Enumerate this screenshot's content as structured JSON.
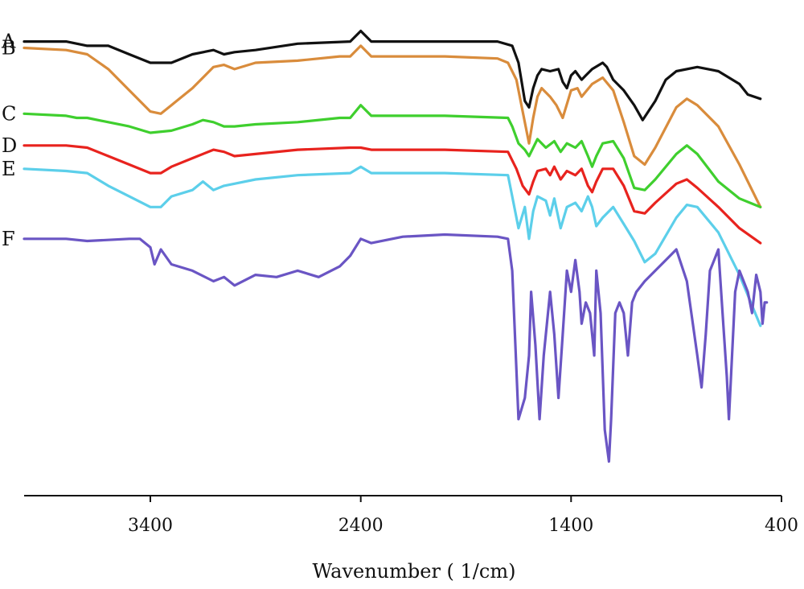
{
  "chart_data": {
    "type": "line",
    "title": "",
    "xlabel": "Wavenumber ( 1/cm)",
    "ylabel": "",
    "x_reversed": true,
    "xlim": [
      4000,
      400
    ],
    "xticks": [
      3400,
      2400,
      1400,
      400
    ],
    "y_axis_shown": false,
    "grid": false,
    "series": [
      {
        "name": "A",
        "color": "#111111",
        "offset": 0,
        "points": [
          [
            4000,
            98
          ],
          [
            3800,
            98
          ],
          [
            3700,
            96
          ],
          [
            3600,
            96
          ],
          [
            3500,
            92
          ],
          [
            3400,
            88
          ],
          [
            3300,
            88
          ],
          [
            3200,
            92
          ],
          [
            3100,
            94
          ],
          [
            3050,
            92
          ],
          [
            3000,
            93
          ],
          [
            2900,
            94
          ],
          [
            2700,
            97
          ],
          [
            2450,
            98
          ],
          [
            2400,
            103
          ],
          [
            2350,
            98
          ],
          [
            2000,
            98
          ],
          [
            1750,
            98
          ],
          [
            1680,
            96
          ],
          [
            1650,
            88
          ],
          [
            1620,
            70
          ],
          [
            1600,
            67
          ],
          [
            1580,
            76
          ],
          [
            1560,
            82
          ],
          [
            1540,
            85
          ],
          [
            1500,
            84
          ],
          [
            1460,
            85
          ],
          [
            1440,
            79
          ],
          [
            1420,
            76
          ],
          [
            1400,
            82
          ],
          [
            1380,
            84
          ],
          [
            1350,
            80
          ],
          [
            1330,
            82
          ],
          [
            1300,
            85
          ],
          [
            1250,
            88
          ],
          [
            1230,
            86
          ],
          [
            1200,
            80
          ],
          [
            1150,
            75
          ],
          [
            1100,
            68
          ],
          [
            1060,
            61
          ],
          [
            1000,
            70
          ],
          [
            950,
            80
          ],
          [
            900,
            84
          ],
          [
            800,
            86
          ],
          [
            700,
            84
          ],
          [
            600,
            78
          ],
          [
            560,
            73
          ],
          [
            500,
            71
          ]
        ]
      },
      {
        "name": "B",
        "color": "#D98C3C",
        "offset": 0,
        "points": [
          [
            4000,
            95
          ],
          [
            3800,
            94
          ],
          [
            3700,
            92
          ],
          [
            3600,
            85
          ],
          [
            3500,
            75
          ],
          [
            3400,
            65
          ],
          [
            3350,
            64
          ],
          [
            3300,
            68
          ],
          [
            3200,
            76
          ],
          [
            3100,
            86
          ],
          [
            3050,
            87
          ],
          [
            3000,
            85
          ],
          [
            2900,
            88
          ],
          [
            2700,
            89
          ],
          [
            2500,
            91
          ],
          [
            2450,
            91
          ],
          [
            2400,
            96
          ],
          [
            2350,
            91
          ],
          [
            2000,
            91
          ],
          [
            1750,
            90
          ],
          [
            1700,
            88
          ],
          [
            1660,
            80
          ],
          [
            1630,
            65
          ],
          [
            1600,
            50
          ],
          [
            1580,
            62
          ],
          [
            1560,
            72
          ],
          [
            1540,
            76
          ],
          [
            1500,
            72
          ],
          [
            1470,
            68
          ],
          [
            1440,
            62
          ],
          [
            1400,
            75
          ],
          [
            1370,
            76
          ],
          [
            1350,
            72
          ],
          [
            1300,
            78
          ],
          [
            1250,
            81
          ],
          [
            1200,
            75
          ],
          [
            1150,
            60
          ],
          [
            1100,
            44
          ],
          [
            1050,
            40
          ],
          [
            1000,
            48
          ],
          [
            900,
            67
          ],
          [
            850,
            71
          ],
          [
            800,
            68
          ],
          [
            700,
            58
          ],
          [
            600,
            40
          ],
          [
            500,
            20
          ]
        ]
      },
      {
        "name": "C",
        "color": "#3FCF2E",
        "offset": 0,
        "points": [
          [
            4000,
            64
          ],
          [
            3800,
            63
          ],
          [
            3750,
            62
          ],
          [
            3700,
            62
          ],
          [
            3500,
            58
          ],
          [
            3400,
            55
          ],
          [
            3300,
            56
          ],
          [
            3200,
            59
          ],
          [
            3150,
            61
          ],
          [
            3100,
            60
          ],
          [
            3050,
            58
          ],
          [
            3000,
            58
          ],
          [
            2900,
            59
          ],
          [
            2700,
            60
          ],
          [
            2500,
            62
          ],
          [
            2450,
            62
          ],
          [
            2400,
            68
          ],
          [
            2350,
            63
          ],
          [
            2000,
            63
          ],
          [
            1700,
            62
          ],
          [
            1680,
            58
          ],
          [
            1650,
            50
          ],
          [
            1620,
            47
          ],
          [
            1600,
            44
          ],
          [
            1560,
            52
          ],
          [
            1520,
            48
          ],
          [
            1480,
            51
          ],
          [
            1450,
            46
          ],
          [
            1420,
            50
          ],
          [
            1380,
            48
          ],
          [
            1350,
            51
          ],
          [
            1320,
            44
          ],
          [
            1300,
            39
          ],
          [
            1280,
            44
          ],
          [
            1250,
            50
          ],
          [
            1200,
            51
          ],
          [
            1150,
            43
          ],
          [
            1100,
            29
          ],
          [
            1050,
            28
          ],
          [
            1000,
            33
          ],
          [
            900,
            45
          ],
          [
            850,
            49
          ],
          [
            800,
            45
          ],
          [
            700,
            32
          ],
          [
            600,
            24
          ],
          [
            500,
            20
          ]
        ]
      },
      {
        "name": "D",
        "color": "#E8231E",
        "offset": 0,
        "points": [
          [
            4000,
            49
          ],
          [
            3800,
            49
          ],
          [
            3700,
            48
          ],
          [
            3600,
            44
          ],
          [
            3500,
            40
          ],
          [
            3400,
            36
          ],
          [
            3350,
            36
          ],
          [
            3300,
            39
          ],
          [
            3200,
            43
          ],
          [
            3100,
            47
          ],
          [
            3050,
            46
          ],
          [
            3000,
            44
          ],
          [
            2900,
            45
          ],
          [
            2700,
            47
          ],
          [
            2450,
            48
          ],
          [
            2400,
            48
          ],
          [
            2350,
            47
          ],
          [
            2000,
            47
          ],
          [
            1700,
            46
          ],
          [
            1660,
            38
          ],
          [
            1630,
            30
          ],
          [
            1600,
            26
          ],
          [
            1580,
            32
          ],
          [
            1560,
            37
          ],
          [
            1520,
            38
          ],
          [
            1500,
            35
          ],
          [
            1480,
            39
          ],
          [
            1450,
            33
          ],
          [
            1420,
            37
          ],
          [
            1380,
            35
          ],
          [
            1350,
            38
          ],
          [
            1320,
            30
          ],
          [
            1300,
            27
          ],
          [
            1280,
            32
          ],
          [
            1250,
            38
          ],
          [
            1200,
            38
          ],
          [
            1150,
            30
          ],
          [
            1100,
            18
          ],
          [
            1050,
            17
          ],
          [
            1000,
            22
          ],
          [
            900,
            31
          ],
          [
            850,
            33
          ],
          [
            800,
            29
          ],
          [
            700,
            20
          ],
          [
            600,
            10
          ],
          [
            500,
            3
          ]
        ]
      },
      {
        "name": "E",
        "color": "#5CCFEA",
        "offset": 0,
        "points": [
          [
            4000,
            38
          ],
          [
            3800,
            37
          ],
          [
            3700,
            36
          ],
          [
            3600,
            30
          ],
          [
            3500,
            25
          ],
          [
            3400,
            20
          ],
          [
            3350,
            20
          ],
          [
            3300,
            25
          ],
          [
            3200,
            28
          ],
          [
            3150,
            32
          ],
          [
            3100,
            28
          ],
          [
            3050,
            30
          ],
          [
            3000,
            31
          ],
          [
            2900,
            33
          ],
          [
            2700,
            35
          ],
          [
            2450,
            36
          ],
          [
            2400,
            39
          ],
          [
            2350,
            36
          ],
          [
            2000,
            36
          ],
          [
            1700,
            35
          ],
          [
            1680,
            25
          ],
          [
            1650,
            10
          ],
          [
            1620,
            20
          ],
          [
            1600,
            5
          ],
          [
            1580,
            18
          ],
          [
            1560,
            25
          ],
          [
            1520,
            23
          ],
          [
            1500,
            16
          ],
          [
            1480,
            24
          ],
          [
            1450,
            10
          ],
          [
            1420,
            20
          ],
          [
            1380,
            22
          ],
          [
            1350,
            18
          ],
          [
            1320,
            25
          ],
          [
            1300,
            20
          ],
          [
            1280,
            11
          ],
          [
            1250,
            15
          ],
          [
            1200,
            20
          ],
          [
            1150,
            12
          ],
          [
            1100,
            4
          ],
          [
            1050,
            -6
          ],
          [
            1000,
            -2
          ],
          [
            900,
            15
          ],
          [
            850,
            21
          ],
          [
            800,
            20
          ],
          [
            700,
            8
          ],
          [
            600,
            -12
          ],
          [
            500,
            -36
          ]
        ]
      },
      {
        "name": "F",
        "color": "#6A55C4",
        "offset": 0,
        "points": [
          [
            4000,
            5
          ],
          [
            3800,
            5
          ],
          [
            3700,
            4
          ],
          [
            3500,
            5
          ],
          [
            3450,
            5
          ],
          [
            3400,
            1
          ],
          [
            3380,
            -7
          ],
          [
            3350,
            0
          ],
          [
            3300,
            -7
          ],
          [
            3200,
            -10
          ],
          [
            3100,
            -15
          ],
          [
            3050,
            -13
          ],
          [
            3000,
            -17
          ],
          [
            2900,
            -12
          ],
          [
            2800,
            -13
          ],
          [
            2700,
            -10
          ],
          [
            2600,
            -13
          ],
          [
            2500,
            -8
          ],
          [
            2450,
            -3
          ],
          [
            2400,
            5
          ],
          [
            2350,
            3
          ],
          [
            2200,
            6
          ],
          [
            2000,
            7
          ],
          [
            1750,
            6
          ],
          [
            1700,
            5
          ],
          [
            1680,
            -10
          ],
          [
            1650,
            -80
          ],
          [
            1620,
            -70
          ],
          [
            1600,
            -50
          ],
          [
            1590,
            -20
          ],
          [
            1570,
            -45
          ],
          [
            1550,
            -80
          ],
          [
            1530,
            -50
          ],
          [
            1500,
            -20
          ],
          [
            1480,
            -40
          ],
          [
            1460,
            -70
          ],
          [
            1440,
            -40
          ],
          [
            1420,
            -10
          ],
          [
            1400,
            -20
          ],
          [
            1380,
            -5
          ],
          [
            1360,
            -20
          ],
          [
            1350,
            -35
          ],
          [
            1330,
            -25
          ],
          [
            1310,
            -30
          ],
          [
            1290,
            -50
          ],
          [
            1280,
            -10
          ],
          [
            1260,
            -30
          ],
          [
            1240,
            -85
          ],
          [
            1220,
            -100
          ],
          [
            1210,
            -80
          ],
          [
            1190,
            -30
          ],
          [
            1170,
            -25
          ],
          [
            1150,
            -30
          ],
          [
            1130,
            -50
          ],
          [
            1110,
            -25
          ],
          [
            1090,
            -20
          ],
          [
            1050,
            -15
          ],
          [
            1000,
            -10
          ],
          [
            950,
            -5
          ],
          [
            900,
            0
          ],
          [
            850,
            -15
          ],
          [
            800,
            -50
          ],
          [
            780,
            -65
          ],
          [
            760,
            -40
          ],
          [
            740,
            -10
          ],
          [
            720,
            -5
          ],
          [
            700,
            0
          ],
          [
            680,
            -30
          ],
          [
            660,
            -60
          ],
          [
            650,
            -80
          ],
          [
            640,
            -60
          ],
          [
            620,
            -20
          ],
          [
            600,
            -10
          ],
          [
            580,
            -15
          ],
          [
            560,
            -20
          ],
          [
            540,
            -30
          ],
          [
            520,
            -12
          ],
          [
            500,
            -20
          ],
          [
            490,
            -35
          ],
          [
            480,
            -25
          ],
          [
            470,
            -25
          ]
        ]
      }
    ]
  }
}
